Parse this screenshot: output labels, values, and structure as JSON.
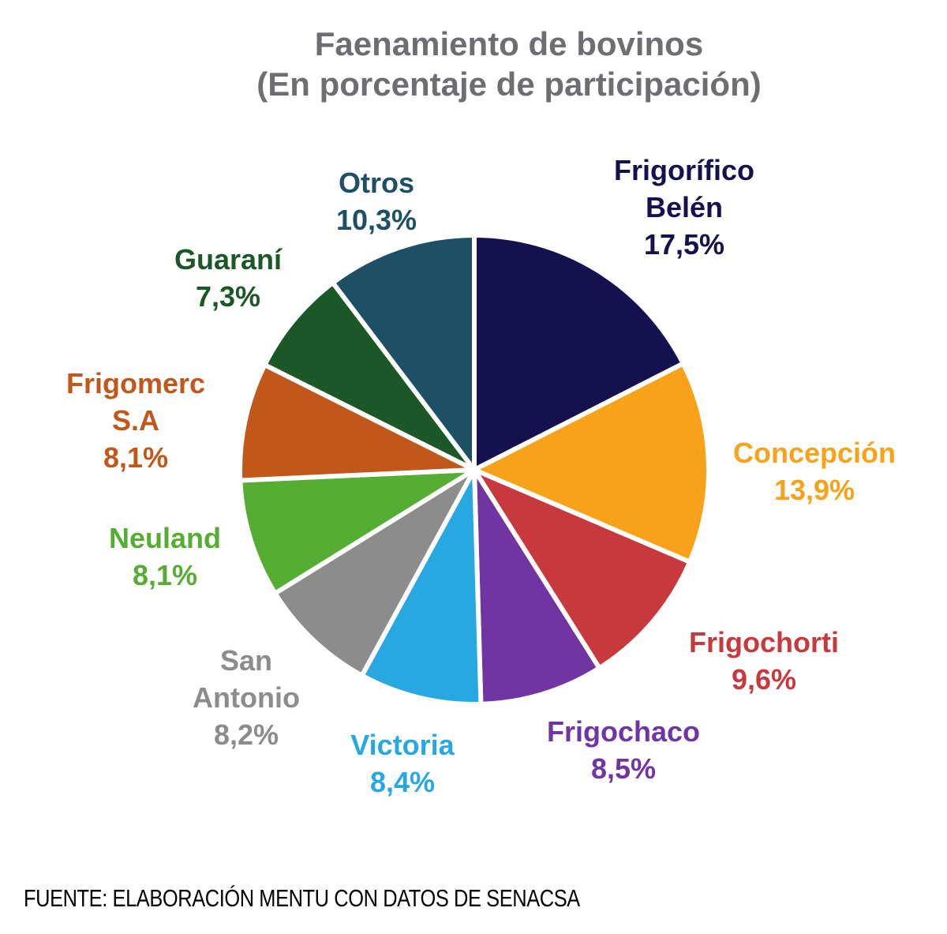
{
  "title": {
    "line1": "Faenamiento de bovinos",
    "line2": "(En porcentaje de participación)"
  },
  "source": "FUENTE: ELABORACIÓN MENTU CON DATOS DE SENACSA",
  "chart_data": {
    "type": "pie",
    "title": "Faenamiento de bovinos (En porcentaje de participación)",
    "start_angle_deg": 0,
    "direction": "clockwise",
    "value_format": "percent-comma-decimal",
    "slices": [
      {
        "label": "Frigorífico Belén",
        "value": 17.5,
        "display": "17,5%",
        "color": "#15114e"
      },
      {
        "label": "Concepción",
        "value": 13.9,
        "display": "13,9%",
        "color": "#f8a21a"
      },
      {
        "label": "Frigochorti",
        "value": 9.6,
        "display": "9,6%",
        "color": "#c8393e"
      },
      {
        "label": "Frigochaco",
        "value": 8.5,
        "display": "8,5%",
        "color": "#7035a3"
      },
      {
        "label": "Victoria",
        "value": 8.4,
        "display": "8,4%",
        "color": "#28a8e0"
      },
      {
        "label": "San Antonio",
        "value": 8.2,
        "display": "8,2%",
        "color": "#8c8c8c"
      },
      {
        "label": "Neuland",
        "value": 8.1,
        "display": "8,1%",
        "color": "#55ad33"
      },
      {
        "label": "Frigomerc S.A",
        "value": 8.1,
        "display": "8,1%",
        "color": "#c2571b"
      },
      {
        "label": "Guaraní",
        "value": 7.3,
        "display": "7,3%",
        "color": "#1b5727"
      },
      {
        "label": "Otros",
        "value": 10.3,
        "display": "10,3%",
        "color": "#1e5065"
      }
    ]
  }
}
